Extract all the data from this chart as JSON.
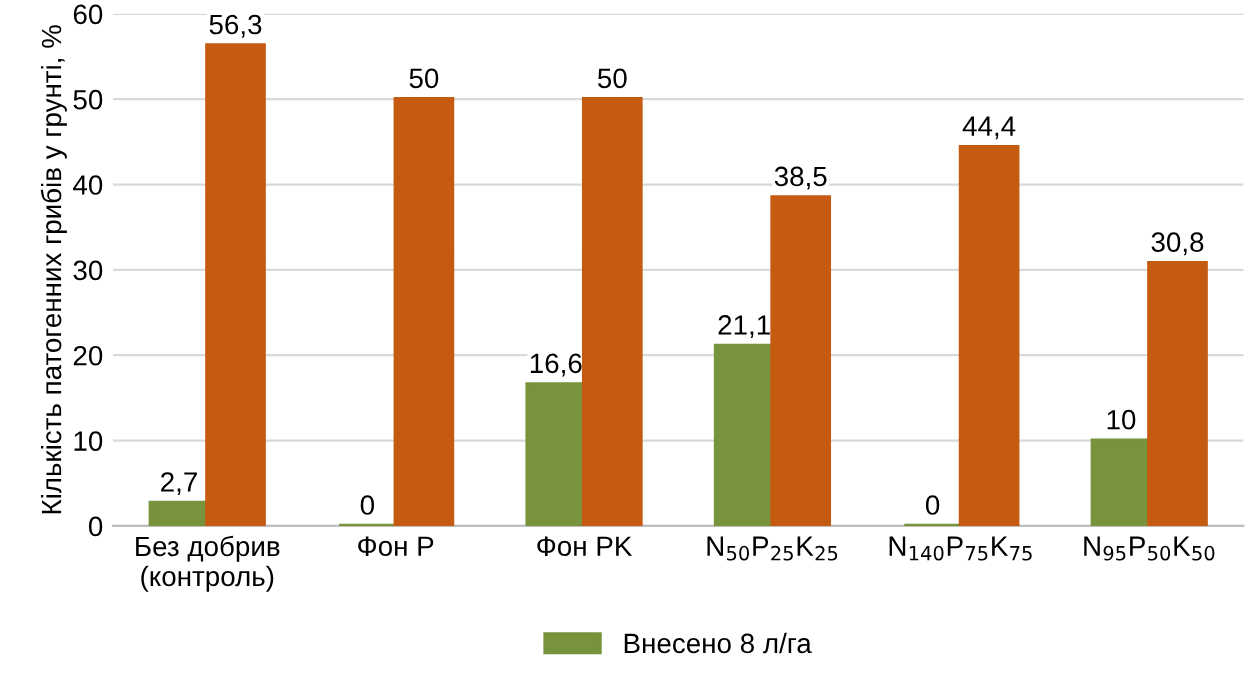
{
  "chart_data": {
    "type": "bar",
    "ylabel": "Кількість патогенних грибів у грунті, %",
    "categories": [
      "Без добрив\n(контроль)",
      "Фон P",
      "Фон PK",
      "N$_{50}$P$_{25}$K$_{25}$",
      "N$_{140}$P$_{75}$K$_{75}$",
      "N$_{95}$P$_{50}$K$_{50}$"
    ],
    "series": [
      {
        "name": "Внесено 8 л/га",
        "color": "#77933c",
        "values": [
          2.7,
          0,
          16.6,
          21.1,
          0,
          10
        ],
        "value_labels": [
          "2,7",
          "0",
          "16,6",
          "21,1",
          "0",
          "10"
        ]
      },
      {
        "color": "#c55a11",
        "values": [
          56.3,
          50,
          50,
          38.5,
          44.4,
          30.8
        ],
        "value_labels": [
          "56,3",
          "50",
          "50",
          "38,5",
          "44,4",
          "30,8"
        ]
      }
    ],
    "ylim": [
      0,
      60
    ],
    "yticks": [
      0,
      10,
      20,
      30,
      40,
      50,
      60
    ],
    "grid": "y",
    "legend": "bottom"
  }
}
